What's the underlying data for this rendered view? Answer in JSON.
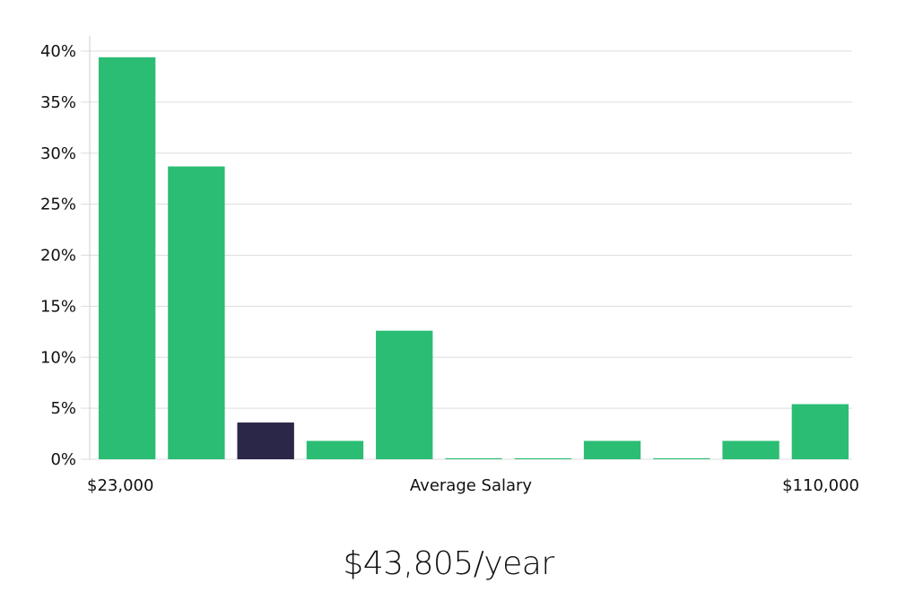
{
  "chart_data": {
    "type": "bar",
    "title": "",
    "xlabel": "Average Salary",
    "ylabel": "",
    "x_min_label": "$23,000",
    "x_max_label": "$110,000",
    "yticks": [
      "0%",
      "5%",
      "10%",
      "15%",
      "20%",
      "25%",
      "30%",
      "35%",
      "40%"
    ],
    "ylim": [
      0,
      40
    ],
    "grid": true,
    "values": [
      39.4,
      28.7,
      3.6,
      1.8,
      12.6,
      0.1,
      0.1,
      1.8,
      0.1,
      1.8,
      5.4
    ],
    "highlight_index": 2,
    "colors": {
      "bar": "#2bbd74",
      "highlight": "#2a2748",
      "grid": "#dddddd",
      "axis": "#cccccc"
    }
  },
  "summary": {
    "salary": "$43,805/year"
  }
}
